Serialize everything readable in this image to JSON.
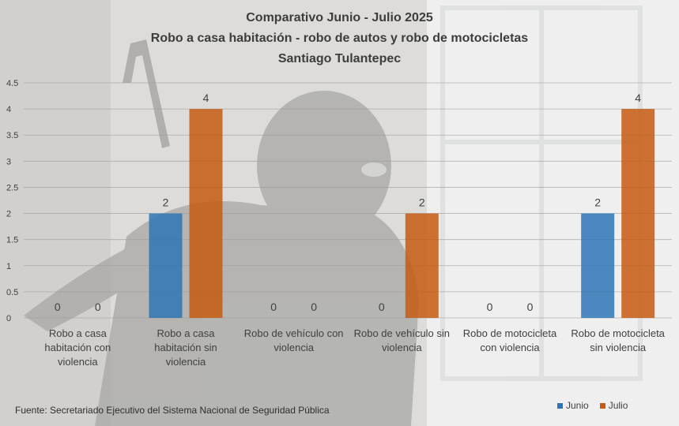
{
  "title_lines": [
    "Comparativo Junio - Julio 2025",
    "Robo a casa habitación  - robo de autos y robo de motocicletas",
    "Santiago Tulantepec"
  ],
  "source": "Fuente: Secretariado Ejecutivo del Sistema Nacional de Seguridad Pública",
  "colors": {
    "junio": "#2E75B6",
    "julio": "#C55A11",
    "text": "#404040"
  },
  "chart_data": {
    "type": "bar",
    "title": "Comparativo Junio - Julio 2025 / Robo a casa habitación - robo de autos y robo de motocicletas / Santiago Tulantepec",
    "categories": [
      [
        "Robo a casa",
        "habitación con",
        "violencia"
      ],
      [
        "Robo a casa",
        "habitación sin",
        "violencia"
      ],
      [
        "Robo de vehículo con",
        "violencia"
      ],
      [
        "Robo de vehículo sin",
        "violencia"
      ],
      [
        "Robo de motocicleta",
        "con violencia"
      ],
      [
        "Robo de motocicleta",
        "sin violencia"
      ]
    ],
    "series": [
      {
        "name": "Junio",
        "values": [
          0,
          2,
          0,
          0,
          0,
          2
        ]
      },
      {
        "name": "Julio",
        "values": [
          0,
          4,
          0,
          2,
          0,
          4
        ]
      }
    ],
    "ylim": [
      0,
      4.5
    ],
    "yticks": [
      0,
      0.5,
      1,
      1.5,
      2,
      2.5,
      3,
      3.5,
      4,
      4.5
    ],
    "grid": true,
    "legend_position": "bottom-right",
    "data_labels": true
  }
}
